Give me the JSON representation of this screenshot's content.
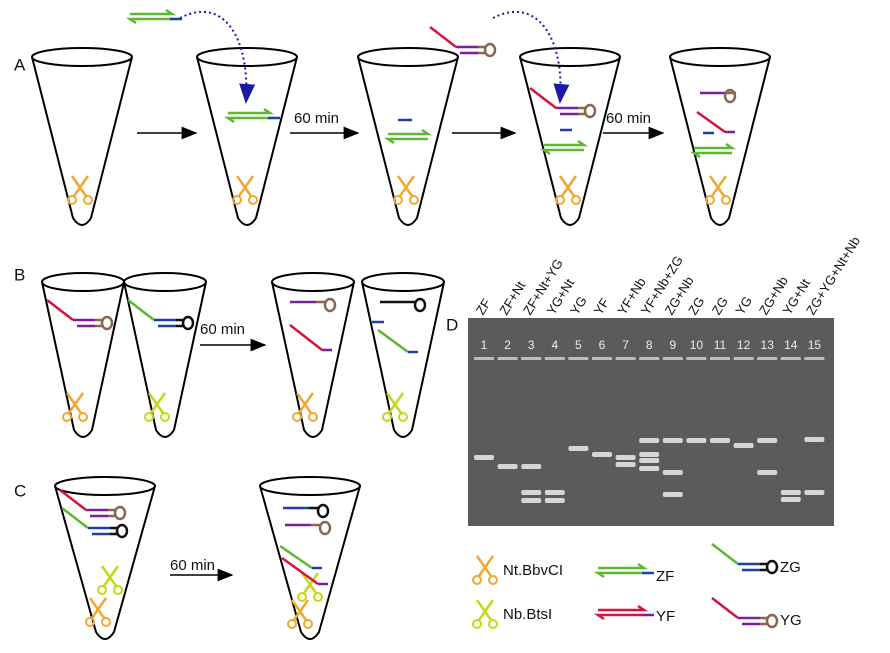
{
  "panels": {
    "a": "A",
    "b": "B",
    "c": "C",
    "d": "D"
  },
  "steps": {
    "a1": "60 min",
    "a2": "60 min",
    "b": "60 min",
    "c": "60 min"
  },
  "gel": {
    "lanes": [
      {
        "label": "ZF",
        "number": "1"
      },
      {
        "label": "ZF+Nt",
        "number": "2"
      },
      {
        "label": "ZF+Nt+YG",
        "number": "3"
      },
      {
        "label": "YG+Nt",
        "number": "4"
      },
      {
        "label": "YG",
        "number": "5"
      },
      {
        "label": "YF",
        "number": "6"
      },
      {
        "label": "YF+Nb",
        "number": "7"
      },
      {
        "label": "YF+Nb+ZG",
        "number": "8"
      },
      {
        "label": "ZG+Nb",
        "number": "9"
      },
      {
        "label": "ZG",
        "number": "10"
      },
      {
        "label": "ZG",
        "number": "11"
      },
      {
        "label": "YG",
        "number": "12"
      },
      {
        "label": "ZG+Nb",
        "number": "13"
      },
      {
        "label": "YG+Nt",
        "number": "14"
      },
      {
        "label": "ZG+YG+Nt+Nb",
        "number": "15"
      }
    ]
  },
  "legend": {
    "nt": "Nt.BbvCI",
    "nb": "Nb.BtsI",
    "zf": "ZF",
    "yf": "YF",
    "zg": "ZG",
    "yg": "YG"
  }
}
